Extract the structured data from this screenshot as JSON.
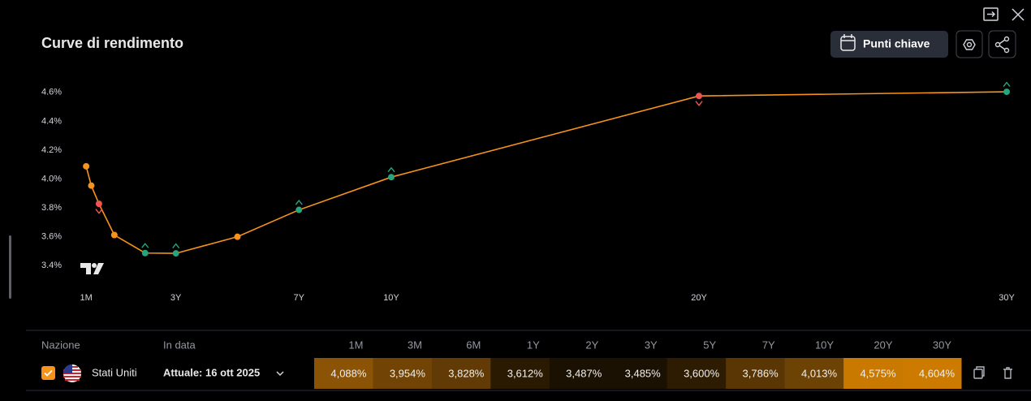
{
  "header": {
    "title": "Curve di rendimento",
    "button": "Punti chiave"
  },
  "chart_data": {
    "type": "line",
    "x": [
      0.0833,
      0.25,
      0.5,
      1,
      2,
      3,
      5,
      7,
      10,
      20,
      30
    ],
    "values": [
      4.088,
      3.954,
      3.828,
      3.612,
      3.487,
      3.485,
      3.6,
      3.786,
      4.013,
      4.575,
      4.604
    ],
    "value_labels": [
      "4,088%",
      "3,954%",
      "3,828%",
      "3,612%",
      "3,487%",
      "3,485%",
      "3,600%",
      "3,786%",
      "4,013%",
      "4,575%",
      "4,604%"
    ],
    "color": "#f7931a",
    "marker_colors": [
      "#f7931a",
      "#f7931a",
      "#f05350",
      "#f7931a",
      "#26a67f",
      "#26a67f",
      "#f7931a",
      "#26a67f",
      "#26a67f",
      "#f05350",
      "#26a67f"
    ],
    "xlim": [
      -0.5,
      30.5
    ],
    "xticks": [
      {
        "value": 0.0833,
        "label": "1M"
      },
      {
        "value": 3,
        "label": "3Y"
      },
      {
        "value": 7,
        "label": "7Y"
      },
      {
        "value": 10,
        "label": "10Y"
      },
      {
        "value": 20,
        "label": "20Y"
      },
      {
        "value": 30,
        "label": "30Y"
      }
    ],
    "ylim": [
      3.3,
      4.7
    ],
    "yticks": [
      {
        "value": 3.4,
        "label": "3.4%"
      },
      {
        "value": 3.6,
        "label": "3.6%"
      },
      {
        "value": 3.8,
        "label": "3.8%"
      },
      {
        "value": 4.0,
        "label": "4.0%"
      },
      {
        "value": 4.2,
        "label": "4.2%"
      },
      {
        "value": 4.4,
        "label": "4.4%"
      },
      {
        "value": 4.6,
        "label": "4.6%"
      }
    ]
  },
  "table": {
    "headers": [
      "Nazione",
      "In data"
    ],
    "tenors": [
      "1M",
      "3M",
      "6M",
      "1Y",
      "2Y",
      "3Y",
      "5Y",
      "7Y",
      "10Y",
      "20Y",
      "30Y"
    ],
    "cell_colors": [
      "#8a5306",
      "#714405",
      "#613a05",
      "#2b1a02",
      "#1b1102",
      "#1b1102",
      "#2e1c02",
      "#5a3605",
      "#6d4205",
      "#c97900",
      "#cc7b00"
    ],
    "row": {
      "country": "Stati Uniti",
      "date": "Attuale: 16 ott 2025"
    }
  }
}
